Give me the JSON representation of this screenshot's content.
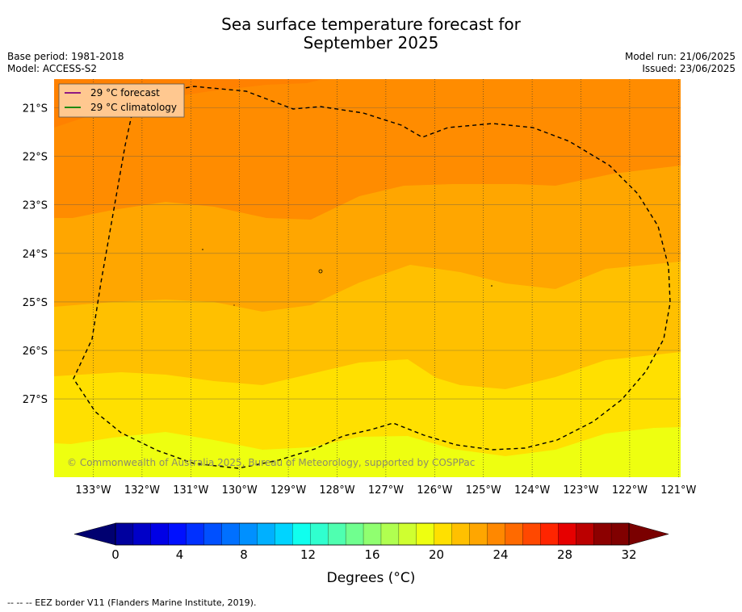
{
  "title": {
    "line1": "Sea surface temperature forecast for",
    "line2": "September 2025"
  },
  "meta": {
    "base_period": "Base period: 1981-2018",
    "model": "Model: ACCESS-S2",
    "model_run": "Model run: 21/06/2025",
    "issued": "Issued: 23/06/2025"
  },
  "legend": {
    "forecast_label": "29 °C  forecast",
    "forecast_color": "#800080",
    "climatology_label": "29 °C  climatology",
    "climatology_color": "#008000"
  },
  "map": {
    "lon_labels": [
      "133°W",
      "132°W",
      "131°W",
      "130°W",
      "129°W",
      "128°W",
      "127°W",
      "126°W",
      "125°W",
      "124°W",
      "123°W",
      "122°W",
      "121°W"
    ],
    "lat_labels": [
      "21°S",
      "22°S",
      "23°S",
      "24°S",
      "25°S",
      "26°S",
      "27°S"
    ],
    "copyright": "© Commonwealth of Australia 2025, Bureau of Meteorology, supported by COSPPac"
  },
  "colorbar": {
    "tick_labels": [
      "0",
      "4",
      "8",
      "12",
      "16",
      "20",
      "24",
      "28",
      "32"
    ],
    "label": "Degrees (°C)",
    "colors": [
      "#000080",
      "#00009e",
      "#0000c8",
      "#0000e6",
      "#0010ff",
      "#0030ff",
      "#0050ff",
      "#0070ff",
      "#0090ff",
      "#00b0ff",
      "#00d4ff",
      "#10ffee",
      "#30ffcf",
      "#4fffb0",
      "#70ff8f",
      "#90ff70",
      "#b0ff50",
      "#cfff30",
      "#eeff10",
      "#ffe000",
      "#ffc000",
      "#ffa600",
      "#ff8800",
      "#ff6a00",
      "#ff4800",
      "#ff2500",
      "#e60000",
      "#bb0000",
      "#8c0000",
      "#800000"
    ],
    "under_color": "#000070",
    "over_color": "#7a0000"
  },
  "sst_bands": {
    "colors": [
      "#ff8c00",
      "#ffa600",
      "#ffc000",
      "#ffe000",
      "#eeff10"
    ]
  },
  "footer": "--  --  -- EEZ border V11 (Flanders Marine Institute, 2019)."
}
